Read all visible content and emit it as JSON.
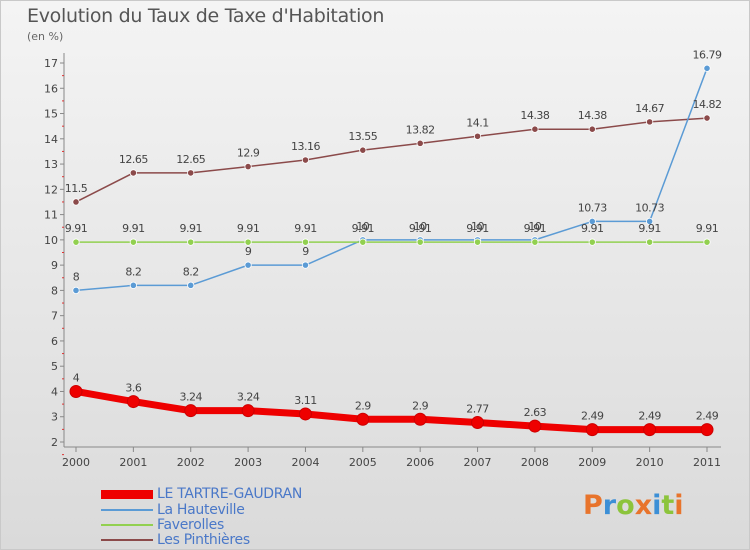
{
  "title": "Evolution du Taux de Taxe d'Habitation",
  "subtitle": "(en %)",
  "logo": {
    "text": "Proxiti",
    "letter_colors": [
      "#e8742c",
      "#3c8fd6",
      "#8cc43c",
      "#e8742c",
      "#3c8fd6",
      "#8cc43c",
      "#e8742c"
    ]
  },
  "chart_data": {
    "type": "line",
    "categories": [
      "2000",
      "2001",
      "2002",
      "2003",
      "2004",
      "2005",
      "2006",
      "2007",
      "2008",
      "2009",
      "2010",
      "2011"
    ],
    "ylim": [
      2,
      17
    ],
    "yticks": [
      "2",
      "3",
      "4",
      "5",
      "6",
      "7",
      "8",
      "9",
      "10",
      "11",
      "12",
      "13",
      "14",
      "15",
      "16",
      "17"
    ],
    "grid": false,
    "legend_position": "bottom-left",
    "series": [
      {
        "name": "LE TARTRE-GAUDRAN",
        "color": "#ee0000",
        "values": [
          4,
          3.6,
          3.24,
          3.24,
          3.11,
          2.9,
          2.9,
          2.77,
          2.63,
          2.49,
          2.49,
          2.49
        ],
        "labels": [
          "4",
          "3.6",
          "3.24",
          "3.24",
          "3.11",
          "2.9",
          "2.9",
          "2.77",
          "2.63",
          "2.49",
          "2.49",
          "2.49"
        ]
      },
      {
        "name": "La Hauteville",
        "color": "#5b9bd5",
        "values": [
          8,
          8.2,
          8.2,
          9,
          9,
          10,
          10,
          10,
          10,
          10.73,
          10.73,
          16.79
        ],
        "labels": [
          "8",
          "8.2",
          "8.2",
          "9",
          "9",
          "10",
          "10",
          "10",
          "10",
          "10.73",
          "10.73",
          "16.79"
        ]
      },
      {
        "name": "Faverolles",
        "color": "#92d050",
        "values": [
          9.91,
          9.91,
          9.91,
          9.91,
          9.91,
          9.91,
          9.91,
          9.91,
          9.91,
          9.91,
          9.91,
          9.91
        ],
        "labels": [
          "9.91",
          "9.91",
          "9.91",
          "9.91",
          "9.91",
          "9.91",
          "9.91",
          "9.91",
          "9.91",
          "9.91",
          "9.91",
          "9.91"
        ]
      },
      {
        "name": "Les Pinthières",
        "color": "#8b4a4a",
        "values": [
          11.5,
          12.65,
          12.65,
          12.9,
          13.16,
          13.55,
          13.82,
          14.1,
          14.38,
          14.38,
          14.67,
          14.82
        ],
        "labels": [
          "11.5",
          "12.65",
          "12.65",
          "12.9",
          "13.16",
          "13.55",
          "13.82",
          "14.1",
          "14.38",
          "14.38",
          "14.67",
          "14.82"
        ]
      }
    ]
  }
}
